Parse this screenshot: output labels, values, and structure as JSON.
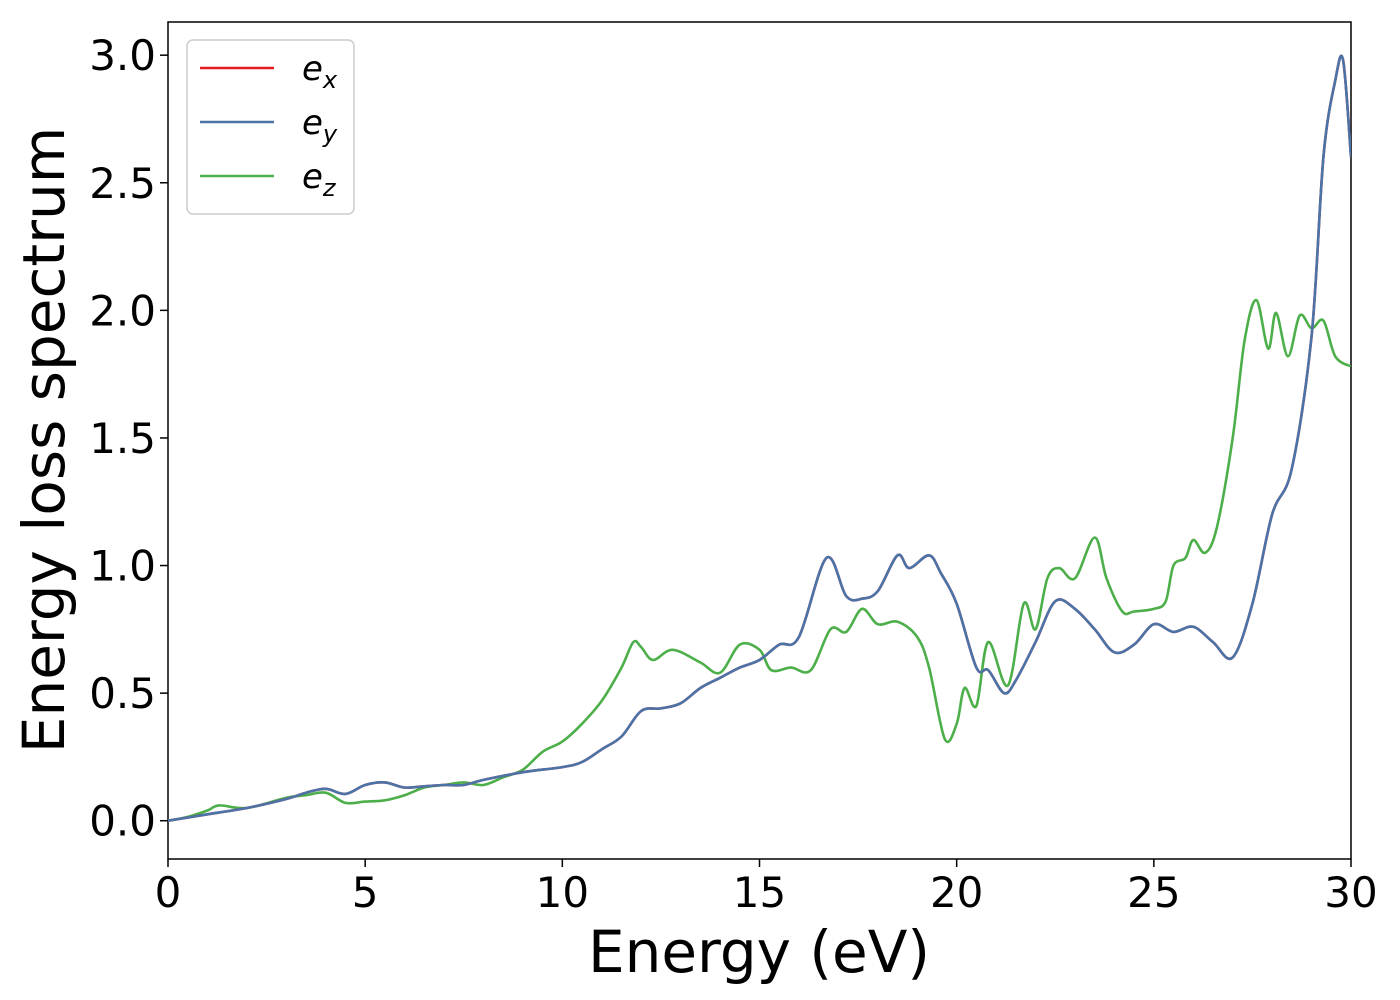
{
  "chart_data": {
    "type": "line",
    "xlabel": "Energy (eV)",
    "ylabel": "Energy loss spectrum",
    "xlim": [
      0,
      30
    ],
    "ylim": [
      -0.15,
      3.13
    ],
    "xticks": [
      0,
      5,
      10,
      15,
      20,
      25,
      30
    ],
    "yticks": [
      0.0,
      0.5,
      1.0,
      1.5,
      2.0,
      2.5,
      3.0
    ],
    "xtick_labels": [
      "0",
      "5",
      "10",
      "15",
      "20",
      "25",
      "30"
    ],
    "ytick_labels": [
      "0.0",
      "0.5",
      "1.0",
      "1.5",
      "2.0",
      "2.5",
      "3.0"
    ],
    "grid": false,
    "legend_position": "top-left",
    "series": [
      {
        "name": "e_x",
        "legend_base": "e",
        "legend_sub": "x",
        "color": "#e41a1c",
        "points": [
          [
            0,
            0
          ],
          [
            1,
            0.025
          ],
          [
            2,
            0.05
          ],
          [
            3,
            0.085
          ],
          [
            3.5,
            0.11
          ],
          [
            4,
            0.125
          ],
          [
            4.5,
            0.105
          ],
          [
            5,
            0.14
          ],
          [
            5.5,
            0.15
          ],
          [
            6,
            0.13
          ],
          [
            6.5,
            0.135
          ],
          [
            7,
            0.14
          ],
          [
            7.5,
            0.14
          ],
          [
            8,
            0.16
          ],
          [
            9,
            0.19
          ],
          [
            10,
            0.21
          ],
          [
            10.5,
            0.23
          ],
          [
            11,
            0.28
          ],
          [
            11.5,
            0.33
          ],
          [
            12,
            0.43
          ],
          [
            12.5,
            0.44
          ],
          [
            13,
            0.46
          ],
          [
            13.5,
            0.52
          ],
          [
            14,
            0.56
          ],
          [
            14.5,
            0.6
          ],
          [
            15,
            0.63
          ],
          [
            15.5,
            0.69
          ],
          [
            16,
            0.72
          ],
          [
            16.7,
            1.03
          ],
          [
            17.2,
            0.88
          ],
          [
            17.6,
            0.87
          ],
          [
            18,
            0.9
          ],
          [
            18.5,
            1.04
          ],
          [
            18.8,
            0.99
          ],
          [
            19.3,
            1.04
          ],
          [
            19.6,
            0.97
          ],
          [
            20,
            0.85
          ],
          [
            20.5,
            0.6
          ],
          [
            20.8,
            0.59
          ],
          [
            21.2,
            0.5
          ],
          [
            21.5,
            0.55
          ],
          [
            22,
            0.7
          ],
          [
            22.5,
            0.86
          ],
          [
            23,
            0.83
          ],
          [
            23.5,
            0.75
          ],
          [
            24,
            0.66
          ],
          [
            24.5,
            0.69
          ],
          [
            25,
            0.77
          ],
          [
            25.5,
            0.74
          ],
          [
            26,
            0.76
          ],
          [
            26.5,
            0.7
          ],
          [
            27,
            0.64
          ],
          [
            27.5,
            0.85
          ],
          [
            28,
            1.2
          ],
          [
            28.5,
            1.38
          ],
          [
            29,
            1.9
          ],
          [
            29.3,
            2.6
          ],
          [
            29.6,
            2.9
          ],
          [
            29.8,
            2.98
          ],
          [
            30,
            2.6
          ]
        ]
      },
      {
        "name": "e_y",
        "legend_base": "e",
        "legend_sub": "y",
        "color": "#4a73a8",
        "points": [
          [
            0,
            0
          ],
          [
            1,
            0.025
          ],
          [
            2,
            0.05
          ],
          [
            3,
            0.085
          ],
          [
            3.5,
            0.11
          ],
          [
            4,
            0.125
          ],
          [
            4.5,
            0.105
          ],
          [
            5,
            0.14
          ],
          [
            5.5,
            0.15
          ],
          [
            6,
            0.13
          ],
          [
            6.5,
            0.135
          ],
          [
            7,
            0.14
          ],
          [
            7.5,
            0.14
          ],
          [
            8,
            0.16
          ],
          [
            9,
            0.19
          ],
          [
            10,
            0.21
          ],
          [
            10.5,
            0.23
          ],
          [
            11,
            0.28
          ],
          [
            11.5,
            0.33
          ],
          [
            12,
            0.43
          ],
          [
            12.5,
            0.44
          ],
          [
            13,
            0.46
          ],
          [
            13.5,
            0.52
          ],
          [
            14,
            0.56
          ],
          [
            14.5,
            0.6
          ],
          [
            15,
            0.63
          ],
          [
            15.5,
            0.69
          ],
          [
            16,
            0.72
          ],
          [
            16.7,
            1.03
          ],
          [
            17.2,
            0.88
          ],
          [
            17.6,
            0.87
          ],
          [
            18,
            0.9
          ],
          [
            18.5,
            1.04
          ],
          [
            18.8,
            0.99
          ],
          [
            19.3,
            1.04
          ],
          [
            19.6,
            0.97
          ],
          [
            20,
            0.85
          ],
          [
            20.5,
            0.6
          ],
          [
            20.8,
            0.59
          ],
          [
            21.2,
            0.5
          ],
          [
            21.5,
            0.55
          ],
          [
            22,
            0.7
          ],
          [
            22.5,
            0.86
          ],
          [
            23,
            0.83
          ],
          [
            23.5,
            0.75
          ],
          [
            24,
            0.66
          ],
          [
            24.5,
            0.69
          ],
          [
            25,
            0.77
          ],
          [
            25.5,
            0.74
          ],
          [
            26,
            0.76
          ],
          [
            26.5,
            0.7
          ],
          [
            27,
            0.64
          ],
          [
            27.5,
            0.85
          ],
          [
            28,
            1.2
          ],
          [
            28.5,
            1.38
          ],
          [
            29,
            1.9
          ],
          [
            29.3,
            2.6
          ],
          [
            29.6,
            2.9
          ],
          [
            29.8,
            2.98
          ],
          [
            30,
            2.6
          ]
        ]
      },
      {
        "name": "e_z",
        "legend_base": "e",
        "legend_sub": "z",
        "color": "#4daf4a",
        "points": [
          [
            0,
            0
          ],
          [
            0.5,
            0.015
          ],
          [
            1,
            0.04
          ],
          [
            1.3,
            0.06
          ],
          [
            2,
            0.05
          ],
          [
            3,
            0.09
          ],
          [
            3.5,
            0.1
          ],
          [
            4,
            0.11
          ],
          [
            4.5,
            0.07
          ],
          [
            5,
            0.075
          ],
          [
            5.5,
            0.08
          ],
          [
            6,
            0.1
          ],
          [
            6.5,
            0.13
          ],
          [
            7,
            0.14
          ],
          [
            7.5,
            0.15
          ],
          [
            8,
            0.14
          ],
          [
            8.5,
            0.17
          ],
          [
            9,
            0.2
          ],
          [
            9.5,
            0.27
          ],
          [
            10,
            0.31
          ],
          [
            10.5,
            0.38
          ],
          [
            11,
            0.47
          ],
          [
            11.5,
            0.6
          ],
          [
            11.8,
            0.7
          ],
          [
            12,
            0.68
          ],
          [
            12.3,
            0.63
          ],
          [
            12.8,
            0.67
          ],
          [
            13.5,
            0.62
          ],
          [
            14,
            0.58
          ],
          [
            14.5,
            0.69
          ],
          [
            15,
            0.67
          ],
          [
            15.3,
            0.59
          ],
          [
            15.8,
            0.6
          ],
          [
            16.3,
            0.59
          ],
          [
            16.8,
            0.75
          ],
          [
            17.2,
            0.74
          ],
          [
            17.6,
            0.83
          ],
          [
            18,
            0.77
          ],
          [
            18.5,
            0.78
          ],
          [
            19,
            0.72
          ],
          [
            19.3,
            0.6
          ],
          [
            19.7,
            0.32
          ],
          [
            20,
            0.38
          ],
          [
            20.2,
            0.52
          ],
          [
            20.5,
            0.45
          ],
          [
            20.8,
            0.7
          ],
          [
            21.3,
            0.53
          ],
          [
            21.7,
            0.85
          ],
          [
            22,
            0.75
          ],
          [
            22.3,
            0.95
          ],
          [
            22.6,
            0.99
          ],
          [
            23,
            0.95
          ],
          [
            23.5,
            1.11
          ],
          [
            23.8,
            0.95
          ],
          [
            24.2,
            0.82
          ],
          [
            24.5,
            0.82
          ],
          [
            25,
            0.83
          ],
          [
            25.3,
            0.86
          ],
          [
            25.5,
            1.0
          ],
          [
            25.8,
            1.03
          ],
          [
            26,
            1.1
          ],
          [
            26.3,
            1.05
          ],
          [
            26.6,
            1.15
          ],
          [
            27,
            1.5
          ],
          [
            27.3,
            1.88
          ],
          [
            27.6,
            2.04
          ],
          [
            27.9,
            1.85
          ],
          [
            28.1,
            1.99
          ],
          [
            28.4,
            1.82
          ],
          [
            28.7,
            1.98
          ],
          [
            29,
            1.93
          ],
          [
            29.3,
            1.96
          ],
          [
            29.6,
            1.82
          ],
          [
            30,
            1.78
          ]
        ]
      }
    ]
  }
}
